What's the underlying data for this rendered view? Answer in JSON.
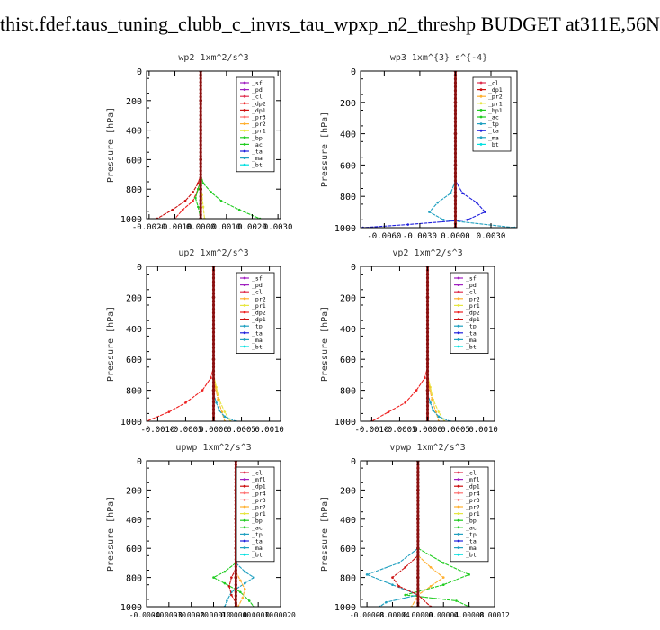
{
  "page": {
    "title": "thist.fdef.taus_tuning_clubb_c_invrs_tau_wpxp_n2_threshp  BUDGET at311E,56N"
  },
  "styles": {
    "colors": {
      "sf": "#a020c0",
      "pd": "#a020c0",
      "cl": "#e03050",
      "dp2": "#ee2020",
      "dp1": "#cc1010",
      "pr3": "#ff7070",
      "pr2": "#ffb030",
      "pr1": "#e6e640",
      "bp": "#20cc20",
      "bp1": "#20cc20",
      "ac": "#20cc20",
      "tp": "#20a0c0",
      "ta": "#2020dd",
      "ma": "#20a0c0",
      "bt": "#00e0e0",
      "mfl": "#a020c0",
      "dp4": "#cc1010",
      "pr4": "#ff7070",
      "main": "#8b1010"
    }
  },
  "chart_data": [
    {
      "id": "wp2",
      "type": "line",
      "title": "wp2  1xm^2/s^3",
      "ylabel": "Pressure  [hPa]",
      "xlim": [
        -0.0021,
        0.0031
      ],
      "ylim": [
        1000,
        0
      ],
      "xticks": [
        -0.002,
        -0.001,
        0.0,
        0.001,
        0.002,
        0.003
      ],
      "xtick_labels": [
        "-0.0020",
        "-0.0010",
        "0.0000",
        "0.0010",
        "0.0020",
        "0.0030"
      ],
      "yticks": [
        0,
        200,
        400,
        600,
        800,
        1000
      ],
      "legend": [
        "_sf",
        "_pd",
        "_cl",
        "_dp2",
        "_dp1",
        "_pr3",
        "_pr2",
        "_pr1",
        "_bp",
        "_ac",
        "_ta",
        "_ma",
        "_bt"
      ],
      "legend_keys": [
        "sf",
        "pd",
        "cl",
        "dp2",
        "dp1",
        "pr3",
        "pr2",
        "pr1",
        "bp",
        "ac",
        "ta",
        "ma",
        "bt"
      ],
      "legend_position": "top-right",
      "series": [
        {
          "key": "bp",
          "p": [
            700,
            760,
            820,
            880,
            940,
            1000
          ],
          "x": [
            0.0,
            0.0001,
            0.0004,
            0.0008,
            0.0015,
            0.0023
          ]
        },
        {
          "key": "dp1",
          "p": [
            700,
            760,
            820,
            880,
            940,
            1000
          ],
          "x": [
            0.0,
            -0.0001,
            -0.0003,
            -0.0006,
            -0.0011,
            -0.0017
          ]
        },
        {
          "key": "dp2",
          "p": [
            720,
            800,
            880,
            940,
            1000
          ],
          "x": [
            0.0,
            -0.0001,
            -0.0003,
            -0.0007,
            -0.001
          ]
        },
        {
          "key": "ac",
          "p": [
            740,
            800,
            860,
            920,
            1000
          ],
          "x": [
            0.0,
            -0.0001,
            -0.0002,
            -0.0001,
            0.0
          ]
        },
        {
          "key": "pr1",
          "p": [
            760,
            840,
            920,
            1000
          ],
          "x": [
            0.0,
            5e-05,
            0.0001,
            0.00015
          ]
        },
        {
          "key": "main",
          "p": [
            0,
            200,
            400,
            600,
            800,
            1000
          ],
          "x": [
            0.0,
            0.0,
            0.0,
            0.0,
            0.0,
            0.0
          ]
        }
      ]
    },
    {
      "id": "wp3",
      "type": "line",
      "title": "wp3  1xm^{3} s^{-4}",
      "ylabel": "Pressure  [hPa]",
      "xlim": [
        -0.008,
        0.0052
      ],
      "ylim": [
        1000,
        0
      ],
      "xticks": [
        -0.006,
        -0.003,
        0.0,
        0.003
      ],
      "xtick_labels": [
        "-0.0060",
        "-0.0030",
        "0.0000",
        "0.0030"
      ],
      "yticks": [
        0,
        200,
        400,
        600,
        800,
        1000
      ],
      "legend": [
        "_cl",
        "_dp1",
        "_pr2",
        "_pr1",
        "_bp1",
        "_ac",
        "_tp",
        "_ta",
        "_ma",
        "_bt"
      ],
      "legend_keys": [
        "cl",
        "dp1",
        "pr2",
        "pr1",
        "bp1",
        "ac",
        "tp",
        "ta",
        "ma",
        "bt"
      ],
      "legend_position": "top-right",
      "series": [
        {
          "key": "tp",
          "p": [
            700,
            780,
            840,
            900,
            950,
            1000
          ],
          "x": [
            0.0,
            -0.0004,
            -0.0015,
            -0.0022,
            -0.001,
            0.005
          ]
        },
        {
          "key": "ta",
          "p": [
            700,
            780,
            840,
            900,
            950,
            980,
            1000
          ],
          "x": [
            0.0,
            0.0006,
            0.0018,
            0.0025,
            0.001,
            -0.004,
            -0.0078
          ]
        },
        {
          "key": "main",
          "p": [
            0,
            200,
            400,
            600,
            800,
            1000
          ],
          "x": [
            0.0,
            0.0,
            0.0,
            0.0,
            0.0,
            0.0
          ]
        }
      ]
    },
    {
      "id": "up2",
      "type": "line",
      "title": "up2  1xm^2/s^3",
      "ylabel": "Pressure  [hPa]",
      "xlim": [
        -0.0012,
        0.0012
      ],
      "ylim": [
        1000,
        0
      ],
      "xticks": [
        -0.001,
        -0.0005,
        0.0,
        0.0005,
        0.001
      ],
      "xtick_labels": [
        "-0.0010",
        "-0.0005",
        "0.0000",
        "0.0005",
        "0.0010"
      ],
      "yticks": [
        0,
        200,
        400,
        600,
        800,
        1000
      ],
      "legend": [
        "_sf",
        "_pd",
        "_cl",
        "_pr2",
        "_pr1",
        "_dp2",
        "_dp1",
        "_tp",
        "_ta",
        "_ma",
        "_bt"
      ],
      "legend_keys": [
        "sf",
        "pd",
        "cl",
        "pr2",
        "pr1",
        "dp2",
        "dp1",
        "tp",
        "ta",
        "ma",
        "bt"
      ],
      "legend_position": "top-right",
      "series": [
        {
          "key": "dp2",
          "p": [
            650,
            720,
            800,
            880,
            940,
            1000
          ],
          "x": [
            0.0,
            -5e-05,
            -0.0002,
            -0.0005,
            -0.0008,
            -0.0012
          ]
        },
        {
          "key": "pr1",
          "p": [
            700,
            780,
            860,
            940,
            1000
          ],
          "x": [
            0.0,
            5e-05,
            0.0001,
            0.0002,
            0.0003
          ]
        },
        {
          "key": "pr2",
          "p": [
            700,
            780,
            860,
            940,
            1000
          ],
          "x": [
            0.0,
            3e-05,
            8e-05,
            0.00015,
            0.0002
          ]
        },
        {
          "key": "tp",
          "p": [
            820,
            880,
            930,
            970,
            1000
          ],
          "x": [
            0.0,
            5e-05,
            0.0001,
            0.0002,
            0.0004
          ]
        },
        {
          "key": "main",
          "p": [
            0,
            200,
            400,
            600,
            800,
            1000
          ],
          "x": [
            0.0,
            0.0,
            0.0,
            0.0,
            0.0,
            0.0
          ]
        }
      ]
    },
    {
      "id": "vp2",
      "type": "line",
      "title": "vp2  1xm^2/s^3",
      "ylabel": "Pressure  [hPa]",
      "xlim": [
        -0.0012,
        0.0012
      ],
      "ylim": [
        1000,
        0
      ],
      "xticks": [
        -0.001,
        -0.0005,
        0.0,
        0.0005,
        0.001
      ],
      "xtick_labels": [
        "-0.0010",
        "-0.0005",
        "0.0000",
        "0.0005",
        "0.0010"
      ],
      "yticks": [
        0,
        200,
        400,
        600,
        800,
        1000
      ],
      "legend": [
        "_sf",
        "_pd",
        "_cl",
        "_pr2",
        "_pr1",
        "_dp2",
        "_dp1",
        "_tp",
        "_ta",
        "_ma",
        "_bt"
      ],
      "legend_keys": [
        "sf",
        "pd",
        "cl",
        "pr2",
        "pr1",
        "dp2",
        "dp1",
        "tp",
        "ta",
        "ma",
        "bt"
      ],
      "legend_position": "top-right",
      "series": [
        {
          "key": "dp2",
          "p": [
            650,
            720,
            800,
            880,
            940,
            1000
          ],
          "x": [
            0.0,
            -5e-05,
            -0.0002,
            -0.0004,
            -0.0007,
            -0.001
          ]
        },
        {
          "key": "pr1",
          "p": [
            700,
            780,
            860,
            940,
            1000
          ],
          "x": [
            0.0,
            5e-05,
            0.0001,
            0.0002,
            0.0003
          ]
        },
        {
          "key": "pr2",
          "p": [
            700,
            780,
            860,
            940,
            1000
          ],
          "x": [
            0.0,
            3e-05,
            8e-05,
            0.00015,
            0.0002
          ]
        },
        {
          "key": "tp",
          "p": [
            820,
            880,
            930,
            970,
            1000
          ],
          "x": [
            0.0,
            5e-05,
            0.0001,
            0.0002,
            0.0004
          ]
        },
        {
          "key": "main",
          "p": [
            0,
            200,
            400,
            600,
            800,
            1000
          ],
          "x": [
            0.0,
            0.0,
            0.0,
            0.0,
            0.0,
            0.0
          ]
        }
      ]
    },
    {
      "id": "upwp",
      "type": "line",
      "title": "upwp  1xm^2/s^3",
      "ylabel": "Pressure  [hPa]",
      "xlim": [
        -0.0004,
        0.0002
      ],
      "ylim": [
        1000,
        0
      ],
      "xticks": [
        -0.0004,
        -0.0003,
        -0.0002,
        -0.0001,
        0.0,
        0.0001,
        0.0002
      ],
      "xtick_labels": [
        "-0.00040",
        "-0.00030",
        "-0.00020",
        "-0.00010",
        "0.00000",
        "0.00010",
        "0.00020"
      ],
      "yticks": [
        0,
        200,
        400,
        600,
        800,
        1000
      ],
      "legend": [
        "_cl",
        "_mfl",
        "_dp1",
        "_pr4",
        "_pr3",
        "_pr2",
        "_pr1",
        "_bp",
        "_ac",
        "_tp",
        "_ta",
        "_ma",
        "_bt"
      ],
      "legend_keys": [
        "cl",
        "mfl",
        "dp1",
        "pr4",
        "pr3",
        "pr2",
        "pr1",
        "bp",
        "ac",
        "tp",
        "ta",
        "ma",
        "bt"
      ],
      "legend_position": "top-right",
      "series": [
        {
          "key": "bp",
          "p": [
            700,
            760,
            800,
            840,
            900,
            960,
            1000
          ],
          "x": [
            0.0,
            -5e-05,
            -0.0001,
            -5e-05,
            2e-05,
            6e-05,
            8e-05
          ]
        },
        {
          "key": "tp",
          "p": [
            700,
            760,
            800,
            840,
            900,
            960,
            1000
          ],
          "x": [
            0.0,
            4e-05,
            8e-05,
            4e-05,
            -2e-05,
            -4e-05,
            -5e-05
          ]
        },
        {
          "key": "dp1",
          "p": [
            740,
            800,
            860,
            920,
            1000
          ],
          "x": [
            0.0,
            -2e-05,
            -3e-05,
            -2e-05,
            1e-05
          ]
        },
        {
          "key": "pr2",
          "p": [
            760,
            820,
            880,
            940,
            1000
          ],
          "x": [
            0.0,
            2e-05,
            4e-05,
            3e-05,
            1e-05
          ]
        },
        {
          "key": "main",
          "p": [
            0,
            200,
            400,
            600,
            800,
            1000
          ],
          "x": [
            0.0,
            0.0,
            0.0,
            0.0,
            0.0,
            0.0
          ]
        }
      ]
    },
    {
      "id": "vpwp",
      "type": "line",
      "title": "vpwp  1xm^2/s^3",
      "ylabel": "Pressure  [hPa]",
      "xlim": [
        -9e-05,
        0.00012
      ],
      "ylim": [
        1000,
        0
      ],
      "xticks": [
        -8e-05,
        -4e-05,
        0.0,
        4e-05,
        8e-05,
        0.00012
      ],
      "xtick_labels": [
        "-0.00008",
        "-0.00004",
        "0.00000",
        "0.00004",
        "0.00008",
        "0.00012"
      ],
      "yticks": [
        0,
        200,
        400,
        600,
        800,
        1000
      ],
      "legend": [
        "_cl",
        "_mfl",
        "_dp1",
        "_pr4",
        "_pr3",
        "_pr2",
        "_pr1",
        "_bp",
        "_ac",
        "_tp",
        "_ta",
        "_ma",
        "_bt"
      ],
      "legend_keys": [
        "cl",
        "mfl",
        "dp1",
        "pr4",
        "pr3",
        "pr2",
        "pr1",
        "bp",
        "ac",
        "tp",
        "ta",
        "ma",
        "bt"
      ],
      "legend_position": "top-right",
      "series": [
        {
          "key": "bp",
          "p": [
            600,
            700,
            780,
            850,
            920,
            960,
            1000
          ],
          "x": [
            0.0,
            4e-05,
            8e-05,
            4e-05,
            -2e-05,
            6e-05,
            8e-05
          ]
        },
        {
          "key": "tp",
          "p": [
            600,
            700,
            780,
            850,
            920,
            970,
            1000
          ],
          "x": [
            0.0,
            -3e-05,
            -8e-05,
            -4e-05,
            0.0,
            -5e-05,
            -6e-05
          ]
        },
        {
          "key": "dp1",
          "p": [
            650,
            730,
            800,
            860,
            920,
            1000
          ],
          "x": [
            0.0,
            -2e-05,
            -4e-05,
            -3e-05,
            0.0,
            2e-05
          ]
        },
        {
          "key": "pr2",
          "p": [
            650,
            730,
            800,
            860,
            920,
            1000
          ],
          "x": [
            0.0,
            2e-05,
            4e-05,
            2e-05,
            0.0,
            -1e-05
          ]
        },
        {
          "key": "main",
          "p": [
            0,
            200,
            400,
            600,
            800,
            1000
          ],
          "x": [
            0.0,
            0.0,
            0.0,
            0.0,
            0.0,
            0.0
          ]
        }
      ]
    }
  ]
}
